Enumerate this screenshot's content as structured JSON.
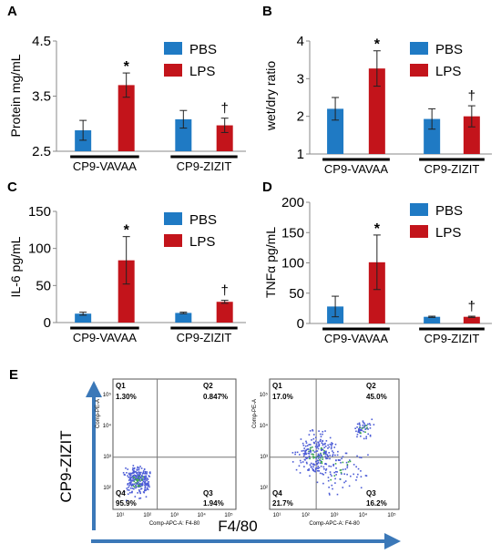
{
  "panels": {
    "a": {
      "letter": "A"
    },
    "b": {
      "letter": "B"
    },
    "c": {
      "letter": "C"
    },
    "d": {
      "letter": "D"
    },
    "e": {
      "letter": "E"
    }
  },
  "colors": {
    "pbs": "#1f7ac4",
    "lps": "#c3141b",
    "scatter_dots": "#4b5bd6",
    "scatter_dense": "#3ca84a",
    "arrow": "#3b78b8"
  },
  "chart_data": [
    {
      "id": "A",
      "type": "bar",
      "ylabel": "Protein mg/mL",
      "yticks": [
        "2.5",
        "3.5",
        "4.5"
      ],
      "ylim": [
        2.5,
        4.5
      ],
      "groups": [
        "CP9-VAVAA",
        "CP9-ZIZIT"
      ],
      "series": [
        {
          "name": "PBS",
          "values": [
            2.88,
            3.08
          ],
          "errors": [
            0.18,
            0.16
          ]
        },
        {
          "name": "LPS",
          "values": [
            3.7,
            2.97
          ],
          "errors": [
            0.22,
            0.13
          ]
        }
      ],
      "annotations": [
        {
          "group": 0,
          "series": 1,
          "text": "*"
        },
        {
          "group": 1,
          "series": 1,
          "text": "†"
        }
      ],
      "legend": "top-right"
    },
    {
      "id": "B",
      "type": "bar",
      "ylabel": "wet/dry ratio",
      "yticks": [
        "1",
        "2",
        "3",
        "4"
      ],
      "ylim": [
        1,
        4
      ],
      "groups": [
        "CP9-VAVAA",
        "CP9-ZIZIT"
      ],
      "series": [
        {
          "name": "PBS",
          "values": [
            2.2,
            1.93
          ],
          "errors": [
            0.3,
            0.27
          ]
        },
        {
          "name": "LPS",
          "values": [
            3.27,
            2.0
          ],
          "errors": [
            0.47,
            0.28
          ]
        }
      ],
      "annotations": [
        {
          "group": 0,
          "series": 1,
          "text": "*"
        },
        {
          "group": 1,
          "series": 1,
          "text": "†"
        }
      ],
      "legend": "top-right"
    },
    {
      "id": "C",
      "type": "bar",
      "ylabel": "IL-6 pg/mL",
      "yticks": [
        "0",
        "50",
        "100",
        "150"
      ],
      "ylim": [
        0,
        150
      ],
      "groups": [
        "CP9-VAVAA",
        "CP9-ZIZIT"
      ],
      "series": [
        {
          "name": "PBS",
          "values": [
            12,
            13
          ],
          "errors": [
            2,
            1
          ]
        },
        {
          "name": "LPS",
          "values": [
            84,
            28
          ],
          "errors": [
            32,
            2
          ]
        }
      ],
      "annotations": [
        {
          "group": 0,
          "series": 1,
          "text": "*"
        },
        {
          "group": 1,
          "series": 1,
          "text": "†"
        }
      ],
      "legend": "top-right"
    },
    {
      "id": "D",
      "type": "bar",
      "ylabel": "TNFα pg/mL",
      "yticks": [
        "0",
        "50",
        "100",
        "150",
        "200"
      ],
      "ylim": [
        0,
        200
      ],
      "groups": [
        "CP9-VAVAA",
        "CP9-ZIZIT"
      ],
      "series": [
        {
          "name": "PBS",
          "values": [
            28,
            11
          ],
          "errors": [
            17,
            1
          ]
        },
        {
          "name": "LPS",
          "values": [
            101,
            11
          ],
          "errors": [
            45,
            1
          ]
        }
      ],
      "annotations": [
        {
          "group": 0,
          "series": 1,
          "text": "*"
        },
        {
          "group": 1,
          "series": 1,
          "text": "†"
        }
      ],
      "legend": "top-right"
    }
  ],
  "flow": {
    "yaxis_title": "CP9-ZIZIT",
    "xaxis_title": "F4/80",
    "plot_ylabel": "Comp-PE-A",
    "plot_xlabel": "Comp-APC-A: F4-80",
    "ytick_labels": [
      "10²",
      "10³",
      "10⁴",
      "10⁵"
    ],
    "xtick_labels": [
      "10¹",
      "10²",
      "10³",
      "10⁴",
      "10⁵"
    ],
    "plots": [
      {
        "q1": "Q1",
        "q1v": "1.30%",
        "q2": "Q2",
        "q2v": "0.847%",
        "q3": "Q3",
        "q3v": "1.94%",
        "q4": "Q4",
        "q4v": "95.9%"
      },
      {
        "q1": "Q1",
        "q1v": "17.0%",
        "q2": "Q2",
        "q2v": "45.0%",
        "q3": "Q3",
        "q3v": "16.2%",
        "q4": "Q4",
        "q4v": "21.7%"
      }
    ]
  }
}
